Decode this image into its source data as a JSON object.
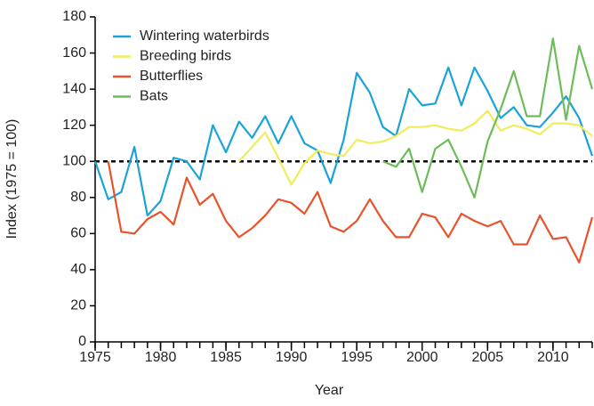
{
  "chart_data": {
    "type": "line",
    "xlabel": "Year",
    "ylabel": "Index (1975 = 100)",
    "x": [
      1975,
      1976,
      1977,
      1978,
      1979,
      1980,
      1981,
      1982,
      1983,
      1984,
      1985,
      1986,
      1987,
      1988,
      1989,
      1990,
      1991,
      1992,
      1993,
      1994,
      1995,
      1996,
      1997,
      1998,
      1999,
      2000,
      2001,
      2002,
      2003,
      2004,
      2005,
      2006,
      2007,
      2008,
      2009,
      2010,
      2011,
      2012,
      2013
    ],
    "series": [
      {
        "name": "Wintering waterbirds",
        "color": "#1aa3d9",
        "values": [
          100,
          79,
          83,
          108,
          70,
          78,
          102,
          100,
          90,
          120,
          105,
          122,
          113,
          125,
          110,
          125,
          110,
          106,
          88,
          112,
          149,
          138,
          119,
          114,
          140,
          131,
          132,
          152,
          131,
          152,
          139,
          124,
          130,
          120,
          119,
          127,
          136,
          124,
          103
        ]
      },
      {
        "name": "Breeding birds",
        "color": "#f0ec5c",
        "values": [
          null,
          null,
          null,
          null,
          null,
          null,
          null,
          null,
          null,
          null,
          null,
          100,
          108,
          116,
          102,
          87,
          99,
          106,
          104,
          103,
          112,
          110,
          111,
          114,
          119,
          119,
          120,
          118,
          117,
          121,
          128,
          117,
          120,
          118,
          115,
          121,
          121,
          120,
          114
        ]
      },
      {
        "name": "Butterflies",
        "color": "#e8532b",
        "values": [
          null,
          100,
          61,
          60,
          68,
          72,
          65,
          91,
          76,
          82,
          67,
          58,
          63,
          70,
          79,
          77,
          71,
          83,
          64,
          61,
          67,
          79,
          67,
          58,
          58,
          71,
          69,
          58,
          71,
          67,
          64,
          67,
          54,
          54,
          70,
          57,
          58,
          44,
          69
        ]
      },
      {
        "name": "Bats",
        "color": "#6cbd5a",
        "values": [
          null,
          null,
          null,
          null,
          null,
          null,
          null,
          null,
          null,
          null,
          null,
          null,
          null,
          null,
          null,
          null,
          null,
          null,
          null,
          null,
          null,
          null,
          100,
          97,
          107,
          83,
          107,
          112,
          97,
          80,
          111,
          129,
          150,
          125,
          125,
          168,
          123,
          164,
          140
        ]
      }
    ],
    "reference_line": 100,
    "xlim": [
      1975,
      2013
    ],
    "xticks": [
      1975,
      1980,
      1985,
      1990,
      1995,
      2000,
      2005,
      2010
    ],
    "ylim": [
      0,
      180
    ],
    "yticks": [
      0,
      20,
      40,
      60,
      80,
      100,
      120,
      140,
      160,
      180
    ],
    "legend": "upper left"
  }
}
